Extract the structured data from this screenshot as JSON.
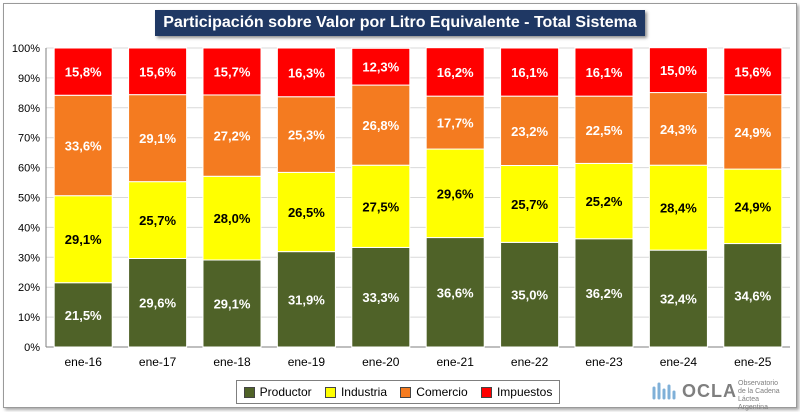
{
  "title": "Participación sobre Valor por Litro Equivalente - Total Sistema",
  "chart_data": {
    "type": "bar",
    "stacked": true,
    "categories": [
      "ene-16",
      "ene-17",
      "ene-18",
      "ene-19",
      "ene-20",
      "ene-21",
      "ene-22",
      "ene-23",
      "ene-24",
      "ene-25"
    ],
    "series": [
      {
        "name": "Productor",
        "color": "#4f6228",
        "label_color": "#ffffff",
        "values": [
          21.5,
          29.6,
          29.1,
          31.9,
          33.3,
          36.6,
          35.0,
          36.2,
          32.4,
          34.6
        ],
        "labels": [
          "21,5%",
          "29,6%",
          "29,1%",
          "31,9%",
          "33,3%",
          "36,6%",
          "35,0%",
          "36,2%",
          "32,4%",
          "34,6%"
        ]
      },
      {
        "name": "Industria",
        "color": "#ffff00",
        "label_color": "#000000",
        "values": [
          29.1,
          25.7,
          28.0,
          26.5,
          27.5,
          29.6,
          25.7,
          25.2,
          28.4,
          24.9
        ],
        "labels": [
          "29,1%",
          "25,7%",
          "28,0%",
          "26,5%",
          "27,5%",
          "29,6%",
          "25,7%",
          "25,2%",
          "28,4%",
          "24,9%"
        ]
      },
      {
        "name": "Comercio",
        "color": "#f47b20",
        "label_color": "#ffffff",
        "values": [
          33.6,
          29.1,
          27.2,
          25.3,
          26.8,
          17.7,
          23.2,
          22.5,
          24.3,
          24.9
        ],
        "labels": [
          "33,6%",
          "29,1%",
          "27,2%",
          "25,3%",
          "26,8%",
          "17,7%",
          "23,2%",
          "22,5%",
          "24,3%",
          "24,9%"
        ]
      },
      {
        "name": "Impuestos",
        "color": "#ff0000",
        "label_color": "#ffffff",
        "values": [
          15.8,
          15.6,
          15.7,
          16.3,
          12.3,
          16.2,
          16.1,
          16.1,
          15.0,
          15.6
        ],
        "labels": [
          "15,8%",
          "15,6%",
          "15,7%",
          "16,3%",
          "12,3%",
          "16,2%",
          "16,1%",
          "16,1%",
          "15,0%",
          "15,6%"
        ]
      }
    ],
    "y_ticks": [
      "0%",
      "10%",
      "20%",
      "30%",
      "40%",
      "50%",
      "60%",
      "70%",
      "80%",
      "90%",
      "100%"
    ],
    "ylim": [
      0,
      100
    ],
    "grid": true,
    "legend_position": "bottom"
  },
  "logo": {
    "name": "OCLA",
    "subtitle_lines": [
      "Observatorio",
      "de la Cadena Láctea",
      "Argentina"
    ]
  }
}
